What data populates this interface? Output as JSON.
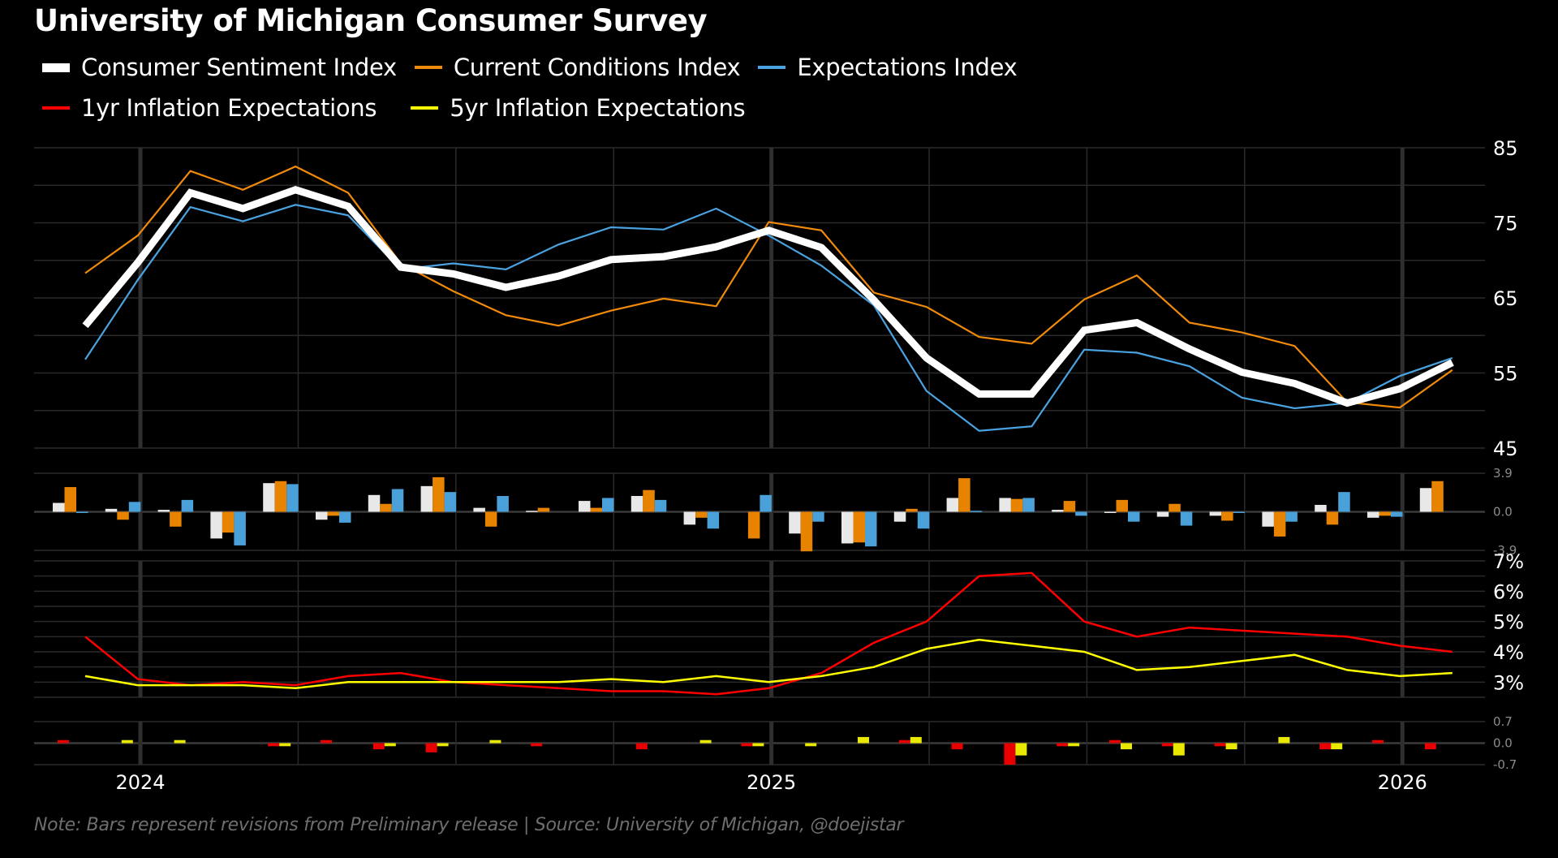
{
  "title": "University of Michigan Consumer Survey",
  "legend": [
    {
      "label": "Consumer Sentiment Index",
      "color": "#ffffff",
      "thick": true
    },
    {
      "label": "Current Conditions Index",
      "color": "#f08a0b",
      "thick": false
    },
    {
      "label": "Expectations Index",
      "color": "#4aa3e0",
      "thick": false
    },
    {
      "label": "1yr Inflation Expectations",
      "color": "#ff0000",
      "thick": false
    },
    {
      "label": "5yr Inflation Expectations",
      "color": "#ffff00",
      "thick": false
    }
  ],
  "note": "Note: Bars represent revisions from Preliminary release  |  Source: University of Michigan, @doejistar",
  "chart_data": [
    {
      "type": "line",
      "panel": "indices",
      "x": [
        "Nov 2023",
        "Dec 2023",
        "Jan 2024",
        "Feb 2024",
        "Mar 2024",
        "Apr 2024",
        "May 2024",
        "Jun 2024",
        "Jul 2024",
        "Aug 2024",
        "Sep 2024",
        "Oct 2024",
        "Nov 2024",
        "Dec 2024",
        "Jan 2025",
        "Feb 2025",
        "Mar 2025",
        "Apr 2025",
        "May 2025",
        "Jun 2025",
        "Jul 2025",
        "Aug 2025",
        "Sep 2025",
        "Oct 2025",
        "Nov 2025",
        "Dec 2025",
        "Jan 2026"
      ],
      "series": [
        {
          "name": "Consumer Sentiment Index",
          "color": "#ffffff",
          "values": [
            61.3,
            69.7,
            79.0,
            76.9,
            79.4,
            77.2,
            69.1,
            68.2,
            66.4,
            67.9,
            70.1,
            70.5,
            71.8,
            74.0,
            71.7,
            64.7,
            57.0,
            52.2,
            52.2,
            60.7,
            61.7,
            58.2,
            55.1,
            53.6,
            51.0,
            52.9,
            56.4
          ]
        },
        {
          "name": "Current Conditions Index",
          "color": "#f08a0b",
          "values": [
            68.3,
            73.3,
            81.9,
            79.4,
            82.5,
            79.0,
            69.6,
            65.9,
            62.7,
            61.3,
            63.3,
            64.9,
            63.9,
            75.1,
            74.0,
            65.7,
            63.8,
            59.8,
            58.9,
            64.8,
            68.0,
            61.7,
            60.4,
            58.6,
            51.1,
            50.4,
            55.4
          ]
        },
        {
          "name": "Expectations Index",
          "color": "#4aa3e0",
          "values": [
            56.8,
            67.4,
            77.1,
            75.2,
            77.4,
            76.0,
            68.8,
            69.6,
            68.8,
            72.1,
            74.4,
            74.1,
            76.9,
            73.3,
            69.3,
            64.0,
            52.6,
            47.3,
            47.9,
            58.1,
            57.7,
            55.9,
            51.7,
            50.3,
            51.0,
            54.6,
            57.0
          ]
        }
      ],
      "ylim": [
        45,
        85
      ],
      "yticks": [
        "85",
        "75",
        "65",
        "55",
        "45"
      ],
      "ytick_values": [
        85,
        75,
        65,
        55,
        45
      ],
      "grid": true
    },
    {
      "type": "bar",
      "panel": "index-revisions",
      "x": [
        "Nov 2023",
        "Dec 2023",
        "Jan 2024",
        "Feb 2024",
        "Mar 2024",
        "Apr 2024",
        "May 2024",
        "Jun 2024",
        "Jul 2024",
        "Aug 2024",
        "Sep 2024",
        "Oct 2024",
        "Nov 2024",
        "Dec 2024",
        "Jan 2025",
        "Feb 2025",
        "Mar 2025",
        "Apr 2025",
        "May 2025",
        "Jun 2025",
        "Jul 2025",
        "Aug 2025",
        "Sep 2025",
        "Oct 2025",
        "Nov 2025",
        "Dec 2025",
        "Jan 2026"
      ],
      "series": [
        {
          "name": "Consumer Sentiment Index revision",
          "color": "#e8e8e8",
          "values": [
            0.9,
            0.3,
            0.2,
            -2.7,
            2.9,
            -0.8,
            1.7,
            2.6,
            0.4,
            0.1,
            1.1,
            1.6,
            -1.3,
            0.0,
            -2.2,
            -3.2,
            -1.0,
            1.4,
            1.4,
            0.2,
            -0.1,
            -0.5,
            -0.4,
            -1.5,
            0.7,
            -0.6,
            2.4
          ]
        },
        {
          "name": "Current Conditions Index revision",
          "color": "#e88300",
          "values": [
            2.5,
            -0.8,
            -1.5,
            -2.1,
            3.1,
            -0.4,
            0.8,
            3.5,
            -1.5,
            0.4,
            0.4,
            2.2,
            -0.6,
            -2.7,
            -4.0,
            -3.1,
            0.3,
            3.4,
            1.3,
            1.1,
            1.2,
            0.8,
            -0.9,
            -2.5,
            -1.3,
            -0.4,
            3.1
          ]
        },
        {
          "name": "Expectations Index revision",
          "color": "#4aa0d8",
          "values": [
            -0.1,
            1.0,
            1.2,
            -3.4,
            2.8,
            -1.1,
            2.3,
            2.0,
            1.6,
            0.0,
            1.4,
            1.2,
            -1.7,
            1.7,
            -1.0,
            -3.5,
            -1.7,
            0.1,
            1.4,
            -0.4,
            -1.0,
            -1.4,
            -0.1,
            -1.0,
            2.0,
            -0.5,
            0.0
          ]
        }
      ],
      "ylim": [
        -3.9,
        3.9
      ],
      "yticks": [
        "3.9",
        "0.0",
        "-3.9"
      ],
      "ytick_values": [
        3.9,
        0,
        -3.9
      ]
    },
    {
      "type": "line",
      "panel": "inflation-expectations",
      "x": [
        "Nov 2023",
        "Dec 2023",
        "Jan 2024",
        "Feb 2024",
        "Mar 2024",
        "Apr 2024",
        "May 2024",
        "Jun 2024",
        "Jul 2024",
        "Aug 2024",
        "Sep 2024",
        "Oct 2024",
        "Nov 2024",
        "Dec 2024",
        "Jan 2025",
        "Feb 2025",
        "Mar 2025",
        "Apr 2025",
        "May 2025",
        "Jun 2025",
        "Jul 2025",
        "Aug 2025",
        "Sep 2025",
        "Oct 2025",
        "Nov 2025",
        "Dec 2025",
        "Jan 2026"
      ],
      "series": [
        {
          "name": "1yr Inflation Expectations",
          "color": "#ff0000",
          "values": [
            4.5,
            3.1,
            2.9,
            3.0,
            2.9,
            3.2,
            3.3,
            3.0,
            2.9,
            2.8,
            2.7,
            2.7,
            2.6,
            2.8,
            3.3,
            4.3,
            5.0,
            6.5,
            6.6,
            5.0,
            4.5,
            4.8,
            4.7,
            4.6,
            4.5,
            4.2,
            4.0
          ]
        },
        {
          "name": "5yr Inflation Expectations",
          "color": "#ffff00",
          "values": [
            3.2,
            2.9,
            2.9,
            2.9,
            2.8,
            3.0,
            3.0,
            3.0,
            3.0,
            3.0,
            3.1,
            3.0,
            3.2,
            3.0,
            3.2,
            3.5,
            4.1,
            4.4,
            4.2,
            4.0,
            3.4,
            3.5,
            3.7,
            3.9,
            3.4,
            3.2,
            3.3
          ]
        }
      ],
      "ylim": [
        2.5,
        7
      ],
      "yticks": [
        "7%",
        "6%",
        "5%",
        "4%",
        "3%"
      ],
      "ytick_values": [
        7,
        6,
        5,
        4,
        3
      ],
      "grid": true
    },
    {
      "type": "bar",
      "panel": "inflation-revisions",
      "x": [
        "Nov 2023",
        "Dec 2023",
        "Jan 2024",
        "Feb 2024",
        "Mar 2024",
        "Apr 2024",
        "May 2024",
        "Jun 2024",
        "Jul 2024",
        "Aug 2024",
        "Sep 2024",
        "Oct 2024",
        "Nov 2024",
        "Dec 2024",
        "Jan 2025",
        "Feb 2025",
        "Mar 2025",
        "Apr 2025",
        "May 2025",
        "Jun 2025",
        "Jul 2025",
        "Aug 2025",
        "Sep 2025",
        "Oct 2025",
        "Nov 2025",
        "Dec 2025",
        "Jan 2026"
      ],
      "series": [
        {
          "name": "1yr Inflation Expectations revision",
          "color": "#e80000",
          "values": [
            0.1,
            0.0,
            0.0,
            0.0,
            -0.1,
            0.1,
            -0.2,
            -0.3,
            0.0,
            -0.1,
            0.0,
            -0.2,
            0.0,
            -0.1,
            0.0,
            0.0,
            0.1,
            -0.2,
            -0.7,
            -0.1,
            0.1,
            -0.1,
            -0.1,
            0.0,
            -0.2,
            0.1,
            -0.2
          ]
        },
        {
          "name": "5yr Inflation Expectations revision",
          "color": "#e8e800",
          "values": [
            0.0,
            0.1,
            0.1,
            0.0,
            -0.1,
            0.0,
            -0.1,
            -0.1,
            0.1,
            0.0,
            0.0,
            0.0,
            0.1,
            -0.1,
            -0.1,
            0.2,
            0.2,
            0.0,
            -0.4,
            -0.1,
            -0.2,
            -0.4,
            -0.2,
            0.2,
            -0.2,
            0.0,
            0.0
          ]
        }
      ],
      "ylim": [
        -0.7,
        0.7
      ],
      "yticks": [
        "0.7",
        "0.0",
        "-0.7"
      ],
      "ytick_values": [
        0.7,
        0,
        -0.7
      ]
    }
  ],
  "xaxis": {
    "year_labels": [
      {
        "label": "2024",
        "month_index": 2
      },
      {
        "label": "2025",
        "month_index": 14
      },
      {
        "label": "2026",
        "month_index": 26
      }
    ]
  }
}
